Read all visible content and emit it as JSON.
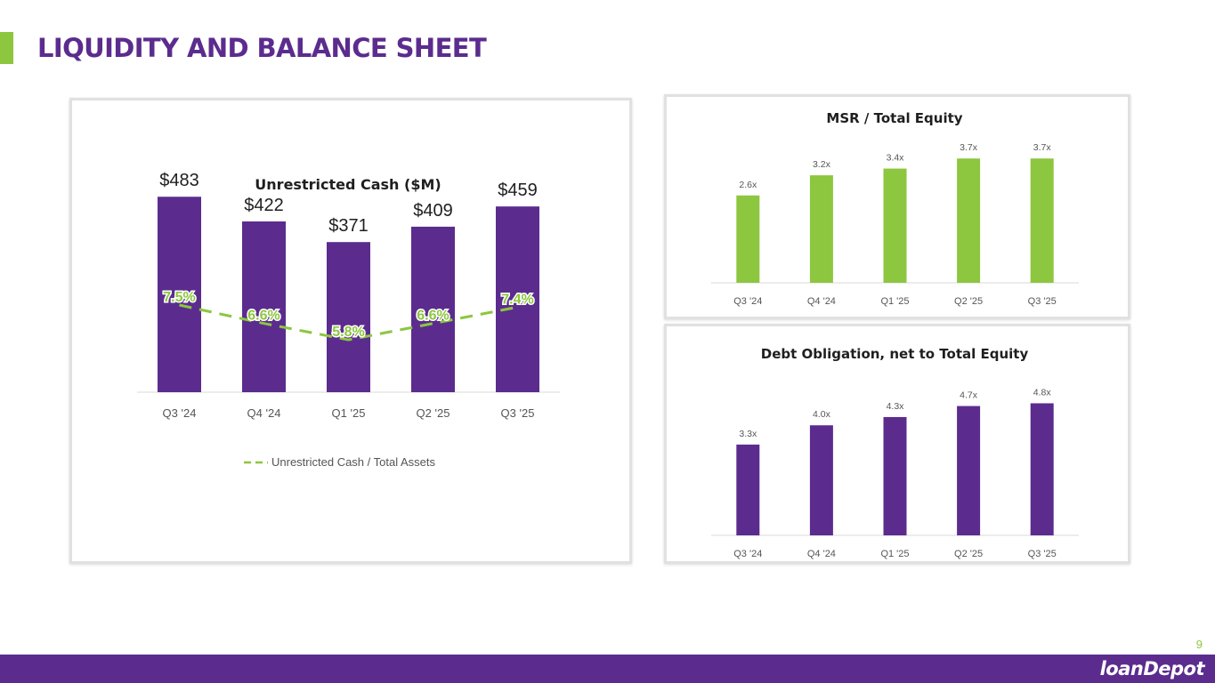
{
  "page": {
    "title": "LIQUIDITY AND BALANCE SHEET",
    "page_number": "9",
    "logo_text": {
      "part1": "loan",
      "mark": "D",
      "part2": "epot"
    }
  },
  "colors": {
    "purple": "#5b2c8e",
    "green": "#8dc63f",
    "text": "#1f1f1f",
    "axis_text": "#555555"
  },
  "chart_data": [
    {
      "type": "bar",
      "title": "Unrestricted Cash ($M)",
      "categories": [
        "Q3 '24",
        "Q4 '24",
        "Q1 '25",
        "Q2 '25",
        "Q3 '25"
      ],
      "values": [
        483,
        422,
        371,
        409,
        459
      ],
      "value_labels": [
        "$483",
        "$422",
        "$371",
        "$409",
        "$459"
      ],
      "bar_color": "#5b2c8e",
      "ylim": [
        0,
        600
      ],
      "overlay_line": {
        "name": "Unrestricted Cash / Total Assets",
        "values": [
          7.5,
          6.6,
          5.8,
          6.6,
          7.4
        ],
        "labels": [
          "7.5%",
          "6.6%",
          "5.8%",
          "6.6%",
          "7.4%"
        ],
        "style": "dashed",
        "color": "#8dc63f"
      },
      "legend": {
        "entries": [
          "Unrestricted Cash / Total Assets"
        ],
        "position": "bottom"
      },
      "xlabel": "",
      "ylabel": "",
      "grid": false
    },
    {
      "type": "bar",
      "title": "MSR / Total Equity",
      "categories": [
        "Q3 '24",
        "Q4 '24",
        "Q1 '25",
        "Q2 '25",
        "Q3 '25"
      ],
      "values": [
        2.6,
        3.2,
        3.4,
        3.7,
        3.7
      ],
      "value_labels": [
        "2.6x",
        "3.2x",
        "3.4x",
        "3.7x",
        "3.7x"
      ],
      "bar_color": "#8dc63f",
      "ylim": [
        0,
        4.5
      ],
      "xlabel": "",
      "ylabel": "",
      "grid": false
    },
    {
      "type": "bar",
      "title": "Debt Obligation, net to Total Equity",
      "categories": [
        "Q3 '24",
        "Q4 '24",
        "Q1 '25",
        "Q2 '25",
        "Q3 '25"
      ],
      "values": [
        3.3,
        4.0,
        4.3,
        4.7,
        4.8
      ],
      "value_labels": [
        "3.3x",
        "4.0x",
        "4.3x",
        "4.7x",
        "4.8x"
      ],
      "bar_color": "#5b2c8e",
      "ylim": [
        0,
        5.3
      ],
      "xlabel": "",
      "ylabel": "",
      "grid": false
    }
  ]
}
